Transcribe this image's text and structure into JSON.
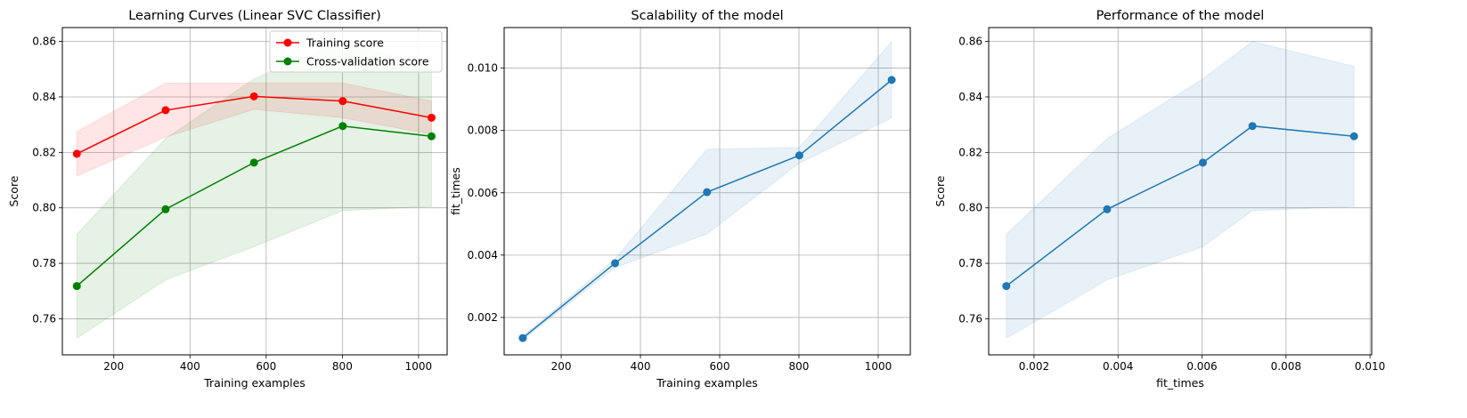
{
  "chart_data": [
    {
      "type": "line",
      "title": "Learning Curves (Linear SVC Classifier)",
      "xlabel": "Training examples",
      "ylabel": "Score",
      "xlim": [
        65,
        1075
      ],
      "ylim": [
        0.747,
        0.865
      ],
      "xticks": [
        200,
        400,
        600,
        800,
        1000
      ],
      "xtick_labels": [
        "200",
        "400",
        "600",
        "800",
        "1000"
      ],
      "yticks": [
        0.76,
        0.78,
        0.8,
        0.82,
        0.84,
        0.86
      ],
      "ytick_labels": [
        "0.76",
        "0.78",
        "0.80",
        "0.82",
        "0.84",
        "0.86"
      ],
      "grid": true,
      "legend": "top-right",
      "x": [
        103,
        336,
        568,
        801,
        1034
      ],
      "series": [
        {
          "name": "Training score",
          "color": "#ff0000",
          "band_color": "#ff0000",
          "values": [
            0.8195,
            0.8352,
            0.8402,
            0.8385,
            0.8325
          ],
          "lower": [
            0.8115,
            0.8255,
            0.8355,
            0.8325,
            0.8265
          ],
          "upper": [
            0.8275,
            0.845,
            0.845,
            0.845,
            0.8385
          ]
        },
        {
          "name": "Cross-validation score",
          "color": "#008000",
          "band_color": "#008000",
          "values": [
            0.7718,
            0.7995,
            0.8163,
            0.8295,
            0.8258
          ],
          "lower": [
            0.753,
            0.774,
            0.786,
            0.799,
            0.8005
          ],
          "upper": [
            0.7905,
            0.825,
            0.8465,
            0.86,
            0.851
          ]
        }
      ]
    },
    {
      "type": "line",
      "title": "Scalability of the model",
      "xlabel": "Training examples",
      "ylabel": "fit_times",
      "xlim": [
        56,
        1081
      ],
      "ylim": [
        0.0008,
        0.0113
      ],
      "xticks": [
        200,
        400,
        600,
        800,
        1000
      ],
      "xtick_labels": [
        "200",
        "400",
        "600",
        "800",
        "1000"
      ],
      "yticks": [
        0.002,
        0.004,
        0.006,
        0.008,
        0.01
      ],
      "ytick_labels": [
        "0.002",
        "0.004",
        "0.006",
        "0.008",
        "0.010"
      ],
      "grid": true,
      "x": [
        103,
        336,
        568,
        801,
        1034
      ],
      "series": [
        {
          "color": "#1f77b4",
          "band_color": "#1f77b4",
          "values": [
            0.00134,
            0.00374,
            0.00602,
            0.0072,
            0.00962
          ],
          "lower": [
            0.00128,
            0.0036,
            0.00468,
            0.00695,
            0.0084
          ],
          "upper": [
            0.0014,
            0.00388,
            0.0074,
            0.00745,
            0.01085
          ]
        }
      ]
    },
    {
      "type": "line",
      "title": "Performance of the model",
      "xlabel": "fit_times",
      "ylabel": "Score",
      "xlim": [
        0.00092,
        0.01004
      ],
      "ylim": [
        0.747,
        0.865
      ],
      "xticks": [
        0.002,
        0.004,
        0.006,
        0.008,
        0.01
      ],
      "xtick_labels": [
        "0.002",
        "0.004",
        "0.006",
        "0.008",
        "0.010"
      ],
      "yticks": [
        0.76,
        0.78,
        0.8,
        0.82,
        0.84,
        0.86
      ],
      "ytick_labels": [
        "0.76",
        "0.78",
        "0.80",
        "0.82",
        "0.84",
        "0.86"
      ],
      "grid": true,
      "x": [
        0.00134,
        0.00374,
        0.00602,
        0.0072,
        0.00962
      ],
      "series": [
        {
          "color": "#1f77b4",
          "band_color": "#1f77b4",
          "values": [
            0.7718,
            0.7995,
            0.8163,
            0.8295,
            0.8258
          ],
          "lower": [
            0.753,
            0.774,
            0.786,
            0.799,
            0.8005
          ],
          "upper": [
            0.7905,
            0.825,
            0.8465,
            0.86,
            0.851
          ]
        }
      ]
    }
  ]
}
